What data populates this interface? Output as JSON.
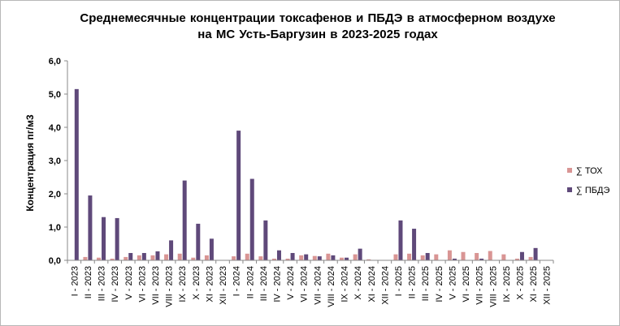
{
  "chart_data": {
    "type": "bar",
    "title_line1": "Среднемесячные  концентрации  токсафенов  и ПБДЭ в атмосферном  воздухе",
    "title_line2": "на МС Усть-Баргузин  в 2023-2025 годах",
    "ylabel": "Концентрация пг/м3",
    "ylim": [
      0,
      6
    ],
    "yticks": [
      "0,0",
      "1,0",
      "2,0",
      "3,0",
      "4,0",
      "5,0",
      "6,0"
    ],
    "grid": false,
    "legend_position": "right",
    "categories": [
      "I - 2023",
      "II - 2023",
      "III - 2023",
      "IV - 2023",
      "V - 2023",
      "VI - 2023",
      "VII - 2023",
      "VIII - 2023",
      "IX - 2023",
      "X - 2023",
      "XI - 2023",
      "XII - 2023",
      "I - 2024",
      "II - 2024",
      "III - 2024",
      "IV - 2024",
      "V - 2024",
      "VI - 2024",
      "VII - 2024",
      "VIII - 2024",
      "IX - 2024",
      "X - 2024",
      "XI - 2024",
      "XII - 2024",
      "I - 2025",
      "II - 2025",
      "III - 2025",
      "IV - 2025",
      "V - 2025",
      "VI - 2025",
      "VII - 2025",
      "VIII - 2025",
      "IX - 2025",
      "X - 2025",
      "XI - 2025",
      "XII - 2025"
    ],
    "series": [
      {
        "name": "∑ ТОХ",
        "color": "#d99594",
        "values": [
          0.0,
          0.1,
          0.08,
          0.05,
          0.1,
          0.15,
          0.15,
          0.18,
          0.2,
          0.08,
          0.15,
          0.0,
          0.12,
          0.2,
          0.12,
          0.05,
          0.05,
          0.15,
          0.13,
          0.2,
          0.08,
          0.18,
          0.03,
          0.0,
          0.18,
          0.2,
          0.15,
          0.18,
          0.3,
          0.25,
          0.22,
          0.28,
          0.18,
          0.05,
          0.1,
          0.0
        ]
      },
      {
        "name": "∑ ПБДЭ",
        "color": "#5f497a",
        "values": [
          5.15,
          1.95,
          1.3,
          1.27,
          0.22,
          0.22,
          0.27,
          0.6,
          2.4,
          1.1,
          0.65,
          0.0,
          3.9,
          2.45,
          1.2,
          0.3,
          0.22,
          0.18,
          0.12,
          0.15,
          0.08,
          0.35,
          0.0,
          0.0,
          1.2,
          0.95,
          0.22,
          0.0,
          0.05,
          0.0,
          0.05,
          0.0,
          0.0,
          0.25,
          0.37,
          0.0
        ]
      }
    ]
  }
}
